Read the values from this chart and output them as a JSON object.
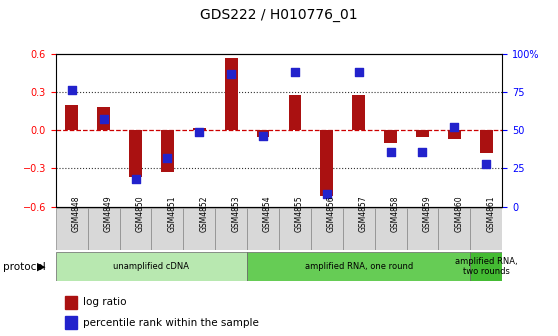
{
  "title": "GDS222 / H010776_01",
  "samples": [
    "GSM4848",
    "GSM4849",
    "GSM4850",
    "GSM4851",
    "GSM4852",
    "GSM4853",
    "GSM4854",
    "GSM4855",
    "GSM4856",
    "GSM4857",
    "GSM4858",
    "GSM4859",
    "GSM4860",
    "GSM4861"
  ],
  "log_ratio": [
    0.2,
    0.18,
    -0.37,
    -0.33,
    0.02,
    0.57,
    -0.05,
    0.28,
    -0.52,
    0.28,
    -0.1,
    -0.05,
    -0.07,
    -0.18
  ],
  "percentile": [
    76,
    57,
    18,
    32,
    49,
    87,
    46,
    88,
    8,
    88,
    36,
    36,
    52,
    28
  ],
  "bar_color": "#aa1111",
  "dot_color": "#2222cc",
  "ylim_left": [
    -0.6,
    0.6
  ],
  "ylim_right": [
    0,
    100
  ],
  "yticks_left": [
    -0.6,
    -0.3,
    0.0,
    0.3,
    0.6
  ],
  "yticks_right": [
    0,
    25,
    50,
    75,
    100
  ],
  "ytick_labels_right": [
    "0",
    "25",
    "50",
    "75",
    "100%"
  ],
  "hlines": [
    0.3,
    -0.3
  ],
  "hline_zero_color": "#cc0000",
  "hline_grid_color": "#333333",
  "protocol_groups": [
    {
      "label": "unamplified cDNA",
      "start": 0,
      "end": 5,
      "color": "#b8e8b0"
    },
    {
      "label": "amplified RNA, one round",
      "start": 6,
      "end": 12,
      "color": "#66cc55"
    },
    {
      "label": "amplified RNA,\ntwo rounds",
      "start": 13,
      "end": 13,
      "color": "#44bb33"
    }
  ],
  "legend_items": [
    {
      "label": "log ratio",
      "color": "#aa1111"
    },
    {
      "label": "percentile rank within the sample",
      "color": "#2222cc"
    }
  ],
  "protocol_label": "protocol",
  "bar_width": 0.4,
  "dot_size": 30
}
